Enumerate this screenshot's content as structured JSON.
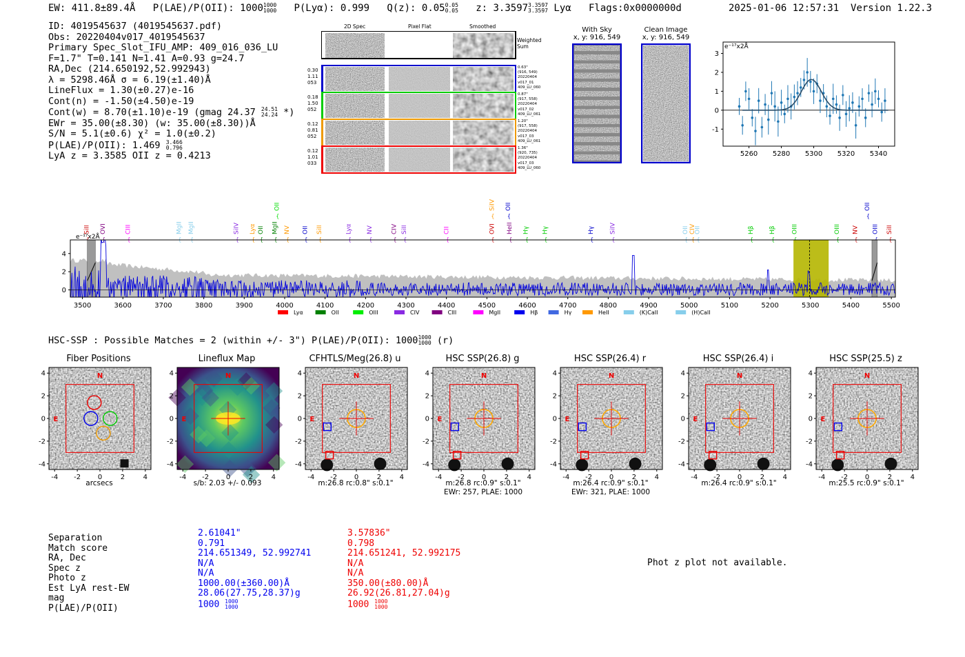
{
  "header": {
    "ew": "EW: 411.8±89.4Å",
    "plae_label": "P(LAE)/P(OII): 1000",
    "plae_hi": "1000",
    "plae_lo": "1000",
    "plya": "P(Lyα): 0.999",
    "qz_label": "Q(z): 0.05",
    "qz_hi": "0.05",
    "qz_lo": "0.05",
    "z_label": "z: 3.3597",
    "z_hi": "3.3597",
    "z_lo": "3.3597",
    "z_line": "Lyα",
    "flags": "Flags:0x0000000d",
    "datetime": "2025-01-06 12:57:31",
    "version": "Version 1.22.3"
  },
  "info": {
    "id": "ID: 4019545637 (4019545637.pdf)",
    "obs": "Obs: 20220404v017_4019545637",
    "primary": "Primary Spec_Slot_IFU_AMP: 409_016_036_LU",
    "fparams": "F=1.7\"  T=0.141  N=1.41  A=0.93  g=24.7",
    "radec": "RA,Dec (214.650192,52.992943)",
    "lambda": "λ = 5298.46Å  σ = 6.19(±1.40)Å",
    "lineflux": "LineFlux = 1.30(±0.27)e-16",
    "contn": "Cont(n) = -1.50(±4.50)e-19",
    "contw": "Cont(w) = 8.70(±1.10)e-19 (gmag 24.37",
    "contw_hi": "24.51",
    "contw_lo": "24.24",
    "contw_end": "*)",
    "ewr": "EWr = 35.00(±8.30) (w: 35.00(±8.30))Å",
    "sn": "S/N = 5.1(±0.6)  χ² = 1.0(±0.2)",
    "plae": "P(LAE)/P(OII): 1.469",
    "plae_hi": "3.466",
    "plae_lo": "0.796",
    "lyaz": "LyA z = 3.3585  OII z = 0.4213"
  },
  "cutouts": {
    "col_labels": [
      "2D Spec",
      "Pixel Flat",
      "Smoothed"
    ],
    "weighted": "Weighted Sum",
    "rows": [
      {
        "left": [
          "0.30",
          "1.11",
          "053"
        ],
        "right": [
          "0.63\"",
          "(916, 549)",
          "20220404",
          "v017_01",
          "409_LU_060"
        ],
        "color": "#0000cc"
      },
      {
        "left": [
          "0.18",
          "1.50",
          "052"
        ],
        "right": [
          "0.87\"",
          "(917, 558)",
          "20220404",
          "v017_02",
          "409_LU_061"
        ],
        "color": "#00cc00"
      },
      {
        "left": [
          "0.12",
          "0.81",
          "052"
        ],
        "right": [
          "1.20\"",
          "(917, 558)",
          "20220404",
          "v017_03",
          "409_LU_061"
        ],
        "color": "#ee9900"
      },
      {
        "left": [
          "0.12",
          "1.01",
          "033"
        ],
        "right": [
          "1.36\"",
          "(920, 735)",
          "20220404",
          "v017_03",
          "409_LU_060"
        ],
        "color": "#ee0000"
      }
    ],
    "withsky_title": "With Sky",
    "withsky_xy": "x, y: 916, 549",
    "clean_title": "Clean Image",
    "clean_xy": "x, y: 916, 549"
  },
  "line_fit": {
    "ylabel": "e⁻¹⁷x2Å",
    "x_ticks": [
      "5260",
      "5280",
      "5300",
      "5320",
      "5340"
    ],
    "y_ticks": [
      "2",
      "1",
      "0",
      "-1",
      "3"
    ],
    "xlim": [
      5244,
      5350
    ],
    "ylim": [
      -1.9,
      3.6
    ],
    "points": [
      [
        5254,
        0.2
      ],
      [
        5256,
        -0.8
      ],
      [
        5258,
        1.0
      ],
      [
        5260,
        0.6
      ],
      [
        5262,
        -0.4
      ],
      [
        5264,
        -1.1
      ],
      [
        5266,
        0.5
      ],
      [
        5268,
        -0.9
      ],
      [
        5270,
        0.3
      ],
      [
        5272,
        -0.5
      ],
      [
        5274,
        0.9
      ],
      [
        5276,
        0.2
      ],
      [
        5278,
        -0.6
      ],
      [
        5280,
        0.4
      ],
      [
        5282,
        -0.2
      ],
      [
        5284,
        0.6
      ],
      [
        5286,
        0.2
      ],
      [
        5288,
        0.7
      ],
      [
        5290,
        0.9
      ],
      [
        5292,
        1.2
      ],
      [
        5294,
        1.6
      ],
      [
        5296,
        2.0
      ],
      [
        5298,
        1.5
      ],
      [
        5300,
        1.0
      ],
      [
        5302,
        1.4
      ],
      [
        5304,
        0.5
      ],
      [
        5306,
        0.9
      ],
      [
        5308,
        0.2
      ],
      [
        5310,
        -0.3
      ],
      [
        5312,
        0.6
      ],
      [
        5314,
        0.3
      ],
      [
        5316,
        -0.4
      ],
      [
        5318,
        0.8
      ],
      [
        5320,
        -0.2
      ],
      [
        5322,
        0.1
      ],
      [
        5324,
        0.4
      ],
      [
        5326,
        -0.8
      ],
      [
        5328,
        0.2
      ],
      [
        5330,
        0.6
      ],
      [
        5332,
        -0.4
      ],
      [
        5334,
        0.9
      ],
      [
        5336,
        0.3
      ],
      [
        5338,
        1.0
      ],
      [
        5340,
        0.6
      ],
      [
        5342,
        -0.1
      ],
      [
        5344,
        0.5
      ]
    ],
    "gauss": {
      "amp": 1.62,
      "mu": 5298.5,
      "sigma": 6.2,
      "base": 0.0
    }
  },
  "spectrum": {
    "ylabel": "e⁻¹⁷x2Å",
    "xlim": [
      3470,
      5510
    ],
    "ylim": [
      -0.8,
      5.5
    ],
    "x_ticks": [
      "3500",
      "3600",
      "3700",
      "3800",
      "3900",
      "4000",
      "4100",
      "4200",
      "4300",
      "4400",
      "4500",
      "4600",
      "4700",
      "4800",
      "4900",
      "5000",
      "5100",
      "5200",
      "5300",
      "5400",
      "5500"
    ],
    "y_ticks": [
      "0",
      "2",
      "4"
    ],
    "highlight": [
      5258,
      5345
    ],
    "line_center": 5298,
    "line_labels": [
      {
        "t": "SiII",
        "x": 3510,
        "c": "#cc0000",
        "row": 1
      },
      {
        "t": "OVI",
        "x": 3550,
        "c": "#800080",
        "row": 1
      },
      {
        "t": "CIII",
        "x": 3612,
        "c": "#ff00ff",
        "row": 1
      },
      {
        "t": "MgII",
        "x": 3738,
        "c": "#87ceeb",
        "row": 1
      },
      {
        "t": "MgII",
        "x": 3768,
        "c": "#87ceeb",
        "row": 1
      },
      {
        "t": "SiIV",
        "x": 3880,
        "c": "#8a2be2",
        "row": 1
      },
      {
        "t": "Lyα",
        "x": 3920,
        "c": "#ff9900",
        "row": 1
      },
      {
        "t": "OII",
        "x": 3940,
        "c": "#008000",
        "row": 1
      },
      {
        "t": "MgII",
        "x": 3975,
        "c": "#008000",
        "row": 1
      },
      {
        "t": "OII",
        "x": 3980,
        "c": "#00dd00",
        "row": 0
      },
      {
        "t": "NV",
        "x": 4005,
        "c": "#ff9900",
        "row": 1
      },
      {
        "t": "OII",
        "x": 4050,
        "c": "#0000cc",
        "row": 1
      },
      {
        "t": "SiII",
        "x": 4085,
        "c": "#ff9900",
        "row": 1
      },
      {
        "t": "Lyα",
        "x": 4158,
        "c": "#8a2be2",
        "row": 1
      },
      {
        "t": "NV",
        "x": 4210,
        "c": "#8a2be2",
        "row": 1
      },
      {
        "t": "CIV",
        "x": 4270,
        "c": "#800080",
        "row": 1
      },
      {
        "t": "SiII",
        "x": 4295,
        "c": "#8a2be2",
        "row": 1
      },
      {
        "t": "CII",
        "x": 4400,
        "c": "#ff00ff",
        "row": 1
      },
      {
        "t": "SiIV",
        "x": 4512,
        "c": "#ff9900",
        "row": 0
      },
      {
        "t": "OVI",
        "x": 4512,
        "c": "#cc0000",
        "row": 1
      },
      {
        "t": "OII",
        "x": 4552,
        "c": "#0000cc",
        "row": 0
      },
      {
        "t": "HeII",
        "x": 4556,
        "c": "#800080",
        "row": 1
      },
      {
        "t": "Hγ",
        "x": 4596,
        "c": "#00cc00",
        "row": 1
      },
      {
        "t": "Hγ",
        "x": 4643,
        "c": "#00cc00",
        "row": 1
      },
      {
        "t": "Hγ",
        "x": 4757,
        "c": "#0000cc",
        "row": 1
      },
      {
        "t": "SiIV",
        "x": 4810,
        "c": "#8a2be2",
        "row": 1
      },
      {
        "t": "OII",
        "x": 4990,
        "c": "#87ceeb",
        "row": 1
      },
      {
        "t": "CIV",
        "x": 5007,
        "c": "#ff9900",
        "row": 1
      },
      {
        "t": "OII",
        "x": 5020,
        "c": "#87ceeb",
        "row": 1
      },
      {
        "t": "Hβ",
        "x": 5152,
        "c": "#00cc00",
        "row": 1
      },
      {
        "t": "Hβ",
        "x": 5205,
        "c": "#00cc00",
        "row": 1
      },
      {
        "t": "OIII",
        "x": 5260,
        "c": "#00cc00",
        "row": 1
      },
      {
        "t": "OIII",
        "x": 5365,
        "c": "#00cc00",
        "row": 1
      },
      {
        "t": "NV",
        "x": 5410,
        "c": "#cc0000",
        "row": 1
      },
      {
        "t": "OII",
        "x": 5440,
        "c": "#0000cc",
        "row": 0
      },
      {
        "t": "OIII",
        "x": 5460,
        "c": "#0000cc",
        "row": 1
      },
      {
        "t": "SiII",
        "x": 5495,
        "c": "#cc0000",
        "row": 1
      }
    ],
    "legend": [
      {
        "t": "Lyα",
        "c": "#ff0000"
      },
      {
        "t": "OII",
        "c": "#008000"
      },
      {
        "t": "OIII",
        "c": "#00ee00"
      },
      {
        "t": "CIV",
        "c": "#8a2be2"
      },
      {
        "t": "CIII",
        "c": "#800080"
      },
      {
        "t": "MgII",
        "c": "#ff00ff"
      },
      {
        "t": "Hβ",
        "c": "#0000ee"
      },
      {
        "t": "Hγ",
        "c": "#4169e1"
      },
      {
        "t": "HeII",
        "c": "#ff9900"
      },
      {
        "t": "(K)CaII",
        "c": "#87ceeb"
      },
      {
        "t": "(H)CaII",
        "c": "#87ceeb"
      }
    ]
  },
  "hsc": {
    "header": "HSC-SSP : Possible Matches = 2 (within +/- 3\")  P(LAE)/P(OII): 1000",
    "plae_hi": "1000",
    "plae_lo": "1000",
    "band": "(r)"
  },
  "panels": [
    {
      "title": "Fiber Positions",
      "cap1": "arcsecs",
      "cap2": "",
      "kind": "fiber"
    },
    {
      "title": "Lineflux Map",
      "cap1": "s/b: 2.03 +/- 0.093",
      "cap2": "",
      "kind": "map"
    },
    {
      "title": "CFHTLS/Meg(26.8) u",
      "cap1": "m:26.8 rc:0.8\"  s:0.1\"",
      "cap2": "",
      "kind": "img"
    },
    {
      "title": "HSC SSP(26.8) g",
      "cap1": "m:26.8 rc:0.9\"  s:0.1\"",
      "cap2": "EWr: 257, PLAE: 1000",
      "kind": "img"
    },
    {
      "title": "HSC SSP(26.4) r",
      "cap1": "m:26.4 rc:0.9\"  s:0.1\"",
      "cap2": "EWr: 321, PLAE: 1000",
      "kind": "img"
    },
    {
      "title": "HSC SSP(26.4) i",
      "cap1": "m:26.4 rc:0.9\"  s:0.1\"",
      "cap2": "",
      "kind": "img"
    },
    {
      "title": "HSC SSP(25.5) z",
      "cap1": "m:25.5 rc:0.9\"  s:0.1\"",
      "cap2": "",
      "kind": "img"
    }
  ],
  "panel_ticks": {
    "x": [
      "-4",
      "-2",
      "0",
      "2",
      "4"
    ],
    "y": [
      "4",
      "2",
      "0",
      "-2",
      "-4"
    ],
    "north": "N",
    "east": "E"
  },
  "matches": {
    "labels": [
      "Separation",
      "Match score",
      "RA, Dec",
      "Spec z",
      "Photo z",
      "Est LyA rest-EW",
      "mag",
      "P(LAE)/P(OII)"
    ],
    "m1": [
      "2.61041\"",
      "0.791",
      "214.651349, 52.992741",
      "N/A",
      "N/A",
      "1000.00(±360.00)Å",
      "28.06(27.75,28.37)g",
      "1000"
    ],
    "m1_plae_hi": "1000",
    "m1_plae_lo": "1000",
    "m2": [
      "3.57836\"",
      "0.798",
      "214.651241, 52.992175",
      "N/A",
      "N/A",
      "350.00(±80.00)Å",
      "26.92(26.81,27.04)g",
      "1000"
    ],
    "m2_plae_hi": "1000",
    "m2_plae_lo": "1000",
    "photz_note": "Phot z plot not available."
  }
}
